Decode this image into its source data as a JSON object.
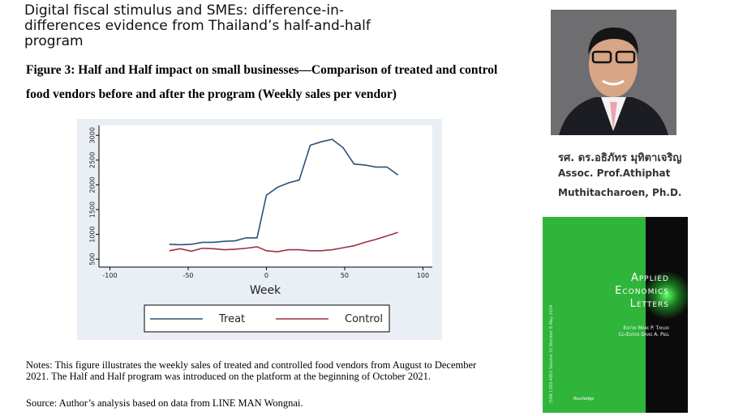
{
  "header": {
    "title": "Digital fiscal stimulus and SMEs: difference-in-differences evidence from Thailand’s half-and-half program"
  },
  "figure_caption": "Figure 3: Half and Half impact on small businesses—Comparison of treated and control food vendors before and after the program (Weekly sales per vendor)",
  "chart_data": {
    "type": "line",
    "xlabel": "Week",
    "x": [
      -62,
      -55,
      -48,
      -41,
      -34,
      -27,
      -20,
      -13,
      -6,
      0,
      7,
      14,
      21,
      28,
      35,
      42,
      49,
      56,
      63,
      70,
      77,
      84
    ],
    "series": [
      {
        "name": "Treat",
        "color": "#2b5179",
        "values": [
          800,
          790,
          800,
          840,
          840,
          860,
          870,
          930,
          930,
          1790,
          1950,
          2040,
          2100,
          2800,
          2870,
          2920,
          2750,
          2420,
          2400,
          2360,
          2360,
          2200
        ]
      },
      {
        "name": "Control",
        "color": "#a03040",
        "values": [
          670,
          710,
          660,
          720,
          710,
          690,
          700,
          720,
          750,
          670,
          650,
          690,
          690,
          670,
          670,
          690,
          730,
          770,
          840,
          900,
          970,
          1040
        ]
      }
    ],
    "xlim": [
      -107,
      106
    ],
    "xticks": [
      -100,
      -50,
      0,
      50,
      100
    ],
    "ylim": [
      340,
      3200
    ],
    "yticks": [
      500,
      1000,
      1500,
      2000,
      2500,
      3000
    ],
    "legend": "bottom"
  },
  "notes": "Notes: This figure illustrates the weekly sales of treated and controlled food vendors from August to December 2021. The Half and Half program was introduced on the platform at the beginning of October 2021.",
  "source": "Source: Author’s analysis based on data from LINE MAN Wongnai.",
  "person": {
    "name_thai": "รศ. ดร.อธิภัทร มุทิตาเจริญ",
    "name_line1": "Assoc. Prof.Athiphat",
    "name_line2": "Muthitacharoen, Ph.D."
  },
  "cover": {
    "title1": "Applied",
    "title2": "Economics",
    "title3": "Letters",
    "editor": "Editor Mark P. Taylor",
    "coeditor": "Co-Editor David A. Peel",
    "spine": "ISSN 1350-4851 Volume 31 Number 8 May 2024",
    "publisher": "Routledge"
  }
}
